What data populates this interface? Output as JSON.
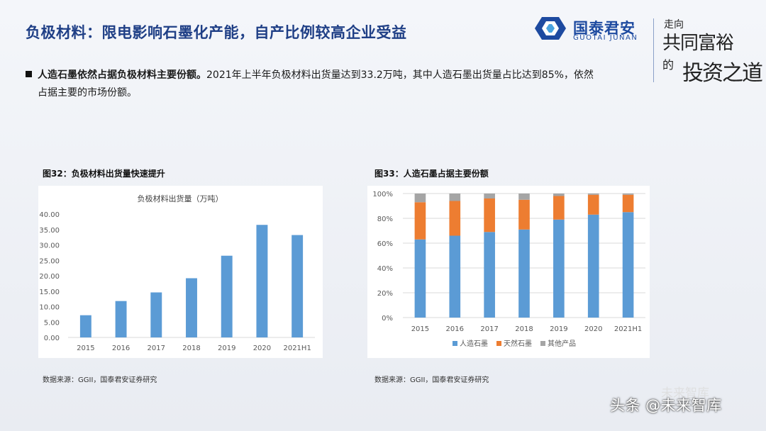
{
  "header": {
    "title": "负极材料：限电影响石墨化产能，自产比例较高企业受益",
    "logo_name": "国泰君安",
    "logo_sub": "GUOTAI JUNAN",
    "slogan": [
      "走向",
      "共同富裕",
      "的",
      "投资之道"
    ]
  },
  "bullet": {
    "bold": "人造石墨依然占据负极材料主要份额。",
    "line1": "2021年上半年负极材料出货量达到33.2万吨，其中人造石墨出货量占比达到85%，依然",
    "line2": "占据主要的市场份额。"
  },
  "figures": [
    {
      "title": "图32：负极材料出货量快速提升",
      "source": "数据来源：GGII，国泰君安证券研究"
    },
    {
      "title": "图33：人造石墨占据主要份额",
      "source": "数据来源：GGII，国泰君安证券研究"
    }
  ],
  "watermark": {
    "text": "头条 @未来智库",
    "brand": "未来智库"
  },
  "chart_data": [
    {
      "type": "bar",
      "title": "负极材料出货量（万吨）",
      "categories": [
        "2015",
        "2016",
        "2017",
        "2018",
        "2019",
        "2020",
        "2021H1"
      ],
      "values": [
        7.2,
        11.8,
        14.6,
        19.2,
        26.5,
        36.5,
        33.2
      ],
      "ylim": [
        0,
        40
      ],
      "yticks": [
        "0.00",
        "5.00",
        "10.00",
        "15.00",
        "20.00",
        "25.00",
        "30.00",
        "35.00",
        "40.00"
      ],
      "grid": false,
      "color": "#5b9bd5"
    },
    {
      "type": "bar",
      "stacked": true,
      "title": "",
      "categories": [
        "2015",
        "2016",
        "2017",
        "2018",
        "2019",
        "2020",
        "2021H1"
      ],
      "series": [
        {
          "name": "人造石墨",
          "color": "#5b9bd5",
          "values": [
            63,
            66,
            69,
            71,
            79,
            83,
            85
          ]
        },
        {
          "name": "天然石墨",
          "color": "#ed7d31",
          "values": [
            30,
            28,
            27,
            24,
            19,
            16,
            14
          ]
        },
        {
          "name": "其他产品",
          "color": "#a5a5a5",
          "values": [
            7,
            6,
            4,
            5,
            2,
            1,
            1
          ]
        }
      ],
      "ylim": [
        0,
        100
      ],
      "yticks": [
        "0%",
        "20%",
        "40%",
        "60%",
        "80%",
        "100%"
      ],
      "grid": true,
      "legend": "bottom"
    }
  ]
}
